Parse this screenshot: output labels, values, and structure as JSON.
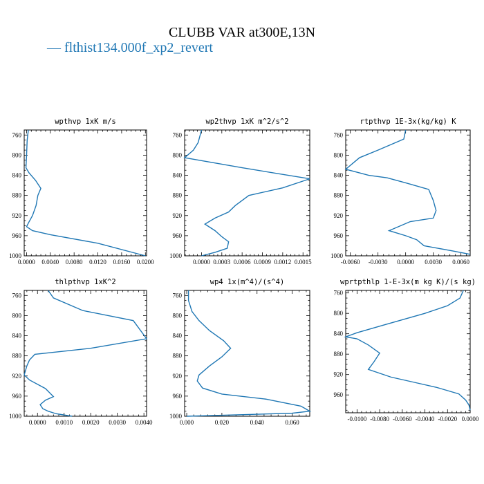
{
  "title": "CLUBB VAR at300E,13N",
  "legend": {
    "marker": "—",
    "label": "flthist134.000f_xp2_revert",
    "color": "#1f77b4"
  },
  "chart_data": [
    {
      "type": "line",
      "title": "wpthvp  1xK m/s",
      "xlim": [
        -0.0004,
        0.0202
      ],
      "ylim": [
        750,
        1000
      ],
      "y_inverted": true,
      "xticks": [
        0.0,
        0.004,
        0.008,
        0.012,
        0.016,
        0.02
      ],
      "xtick_labels": [
        "0.0000",
        "0.0040",
        "0.0080",
        "0.0120",
        "0.0160",
        "0.0200"
      ],
      "yticks": [
        760,
        800,
        840,
        880,
        920,
        960,
        1000
      ],
      "ytick_labels": [
        "760",
        "800",
        "840",
        "880",
        "920",
        "960",
        "1000"
      ],
      "series": [
        {
          "color": "#1f77b4",
          "x": [
            0.0003,
            0.0001,
            0.0,
            -0.0001,
            0.0004,
            0.0015,
            0.0024,
            0.0019,
            0.0016,
            0.001,
            0.0003,
            0.0,
            0.001,
            0.004,
            0.012,
            0.02
          ],
          "y": [
            750,
            770,
            800,
            825,
            835,
            850,
            866,
            880,
            900,
            920,
            935,
            942,
            950,
            958,
            975,
            1000
          ]
        }
      ]
    },
    {
      "type": "line",
      "title": "wp2thvp  1xK m^2/s^2",
      "xlim": [
        -0.00025,
        0.0016
      ],
      "ylim": [
        750,
        1000
      ],
      "y_inverted": true,
      "xticks": [
        0.0,
        0.0003,
        0.0006,
        0.0009,
        0.0012,
        0.0015
      ],
      "xtick_labels": [
        "0.0000",
        "0.0003",
        "0.0006",
        "0.0009",
        "0.0012",
        "0.0015"
      ],
      "yticks": [
        760,
        800,
        840,
        880,
        920,
        960,
        1000
      ],
      "ytick_labels": [
        "760",
        "800",
        "840",
        "880",
        "920",
        "960",
        "1000"
      ],
      "series": [
        {
          "color": "#1f77b4",
          "x": [
            0.0,
            -5e-05,
            -0.00012,
            -0.00025,
            0.0006,
            0.0016,
            0.0012,
            0.0007,
            0.0005,
            0.0004,
            0.0002,
            5e-05,
            0.0002,
            0.0003,
            0.0004,
            0.00038,
            0.0002,
            0.0
          ],
          "y": [
            750,
            775,
            790,
            805,
            825,
            847,
            865,
            880,
            900,
            913,
            925,
            937,
            950,
            962,
            972,
            985,
            993,
            1000
          ]
        }
      ]
    },
    {
      "type": "line",
      "title": "rtpthvp  1E-3x(kg/kg) K",
      "xlim": [
        -0.0065,
        0.007
      ],
      "ylim": [
        750,
        1000
      ],
      "y_inverted": true,
      "xticks": [
        -0.006,
        -0.003,
        0.0,
        0.003,
        0.006
      ],
      "xtick_labels": [
        "-0.0060",
        "-0.0030",
        "0.0000",
        "0.0030",
        "0.0060"
      ],
      "yticks": [
        760,
        800,
        840,
        880,
        920,
        960,
        1000
      ],
      "ytick_labels": [
        "760",
        "800",
        "840",
        "880",
        "920",
        "960",
        "1000"
      ],
      "series": [
        {
          "color": "#1f77b4",
          "x": [
            0.0,
            -0.0002,
            -0.003,
            -0.005,
            -0.0065,
            -0.004,
            -0.002,
            0.0,
            0.0025,
            0.003,
            0.0033,
            0.003,
            0.0005,
            -0.0018,
            0.0,
            0.0012,
            0.002,
            0.005,
            0.007
          ],
          "y": [
            750,
            768,
            790,
            805,
            828,
            840,
            845,
            855,
            868,
            890,
            910,
            925,
            932,
            950,
            960,
            968,
            980,
            990,
            997
          ]
        }
      ]
    },
    {
      "type": "line",
      "title": "thlpthvp  1xK^2",
      "xlim": [
        -0.0005,
        0.0041
      ],
      "ylim": [
        750,
        1000
      ],
      "y_inverted": true,
      "xticks": [
        0.0,
        0.001,
        0.002,
        0.003,
        0.004
      ],
      "xtick_labels": [
        "0.0000",
        "0.0010",
        "0.0020",
        "0.0030",
        "0.0040"
      ],
      "yticks": [
        760,
        800,
        840,
        880,
        920,
        960,
        1000
      ],
      "ytick_labels": [
        "760",
        "800",
        "840",
        "880",
        "920",
        "960",
        "1000"
      ],
      "series": [
        {
          "color": "#1f77b4",
          "x": [
            0.0004,
            0.0006,
            0.0017,
            0.0036,
            0.0041,
            0.002,
            -0.0001,
            -0.0003,
            -0.0004,
            -0.0005,
            -0.0003,
            0.0003,
            0.0006,
            0.0003,
            0.0001,
            0.0002,
            0.0004,
            0.0007,
            0.0013
          ],
          "y": [
            750,
            765,
            790,
            810,
            846,
            865,
            877,
            888,
            900,
            918,
            928,
            945,
            961,
            968,
            977,
            985,
            990,
            995,
            1000
          ]
        }
      ]
    },
    {
      "type": "line",
      "title": "wp4  1x(m^4)/(s^4)",
      "xlim": [
        -0.0012,
        0.07
      ],
      "ylim": [
        750,
        1000
      ],
      "y_inverted": true,
      "xticks": [
        0.0,
        0.02,
        0.04,
        0.06
      ],
      "xtick_labels": [
        "0.000",
        "0.020",
        "0.040",
        "0.060"
      ],
      "yticks": [
        760,
        800,
        840,
        880,
        920,
        960,
        1000
      ],
      "ytick_labels": [
        "760",
        "800",
        "840",
        "880",
        "920",
        "960",
        "1000"
      ],
      "series": [
        {
          "color": "#1f77b4",
          "x": [
            0.001,
            0.001,
            0.003,
            0.007,
            0.013,
            0.021,
            0.025,
            0.02,
            0.013,
            0.007,
            0.006,
            0.009,
            0.02,
            0.045,
            0.065,
            0.07,
            0.06,
            0.02,
            0.0
          ],
          "y": [
            750,
            770,
            792,
            810,
            830,
            850,
            865,
            882,
            900,
            918,
            930,
            944,
            956,
            966,
            980,
            990,
            994,
            998,
            1000
          ]
        }
      ]
    },
    {
      "type": "line",
      "title": "wprtpthlp  1-E-3x(m kg K)/(s kg)",
      "xlim": [
        -0.011,
        0.0
      ],
      "ylim": [
        755,
        995
      ],
      "y_inverted": true,
      "xticks": [
        -0.01,
        -0.008,
        -0.006,
        -0.004,
        -0.002,
        0.0
      ],
      "xtick_labels": [
        "-0.0100",
        "-0.0080",
        "-0.0060",
        "-0.0040",
        "-0.0020",
        "0.0000"
      ],
      "yticks": [
        760,
        800,
        840,
        880,
        920,
        960
      ],
      "ytick_labels": [
        "760",
        "800",
        "840",
        "880",
        "920",
        "960"
      ],
      "series": [
        {
          "color": "#1f77b4",
          "x": [
            -0.0006,
            -0.0009,
            -0.002,
            -0.004,
            -0.0075,
            -0.01,
            -0.011,
            -0.01,
            -0.009,
            -0.008,
            -0.0085,
            -0.009,
            -0.007,
            -0.005,
            -0.003,
            -0.001,
            -0.0004,
            -0.0001,
            0.0
          ],
          "y": [
            755,
            770,
            785,
            800,
            822,
            838,
            846,
            850,
            862,
            878,
            895,
            910,
            925,
            935,
            945,
            958,
            970,
            980,
            990
          ]
        }
      ]
    }
  ]
}
